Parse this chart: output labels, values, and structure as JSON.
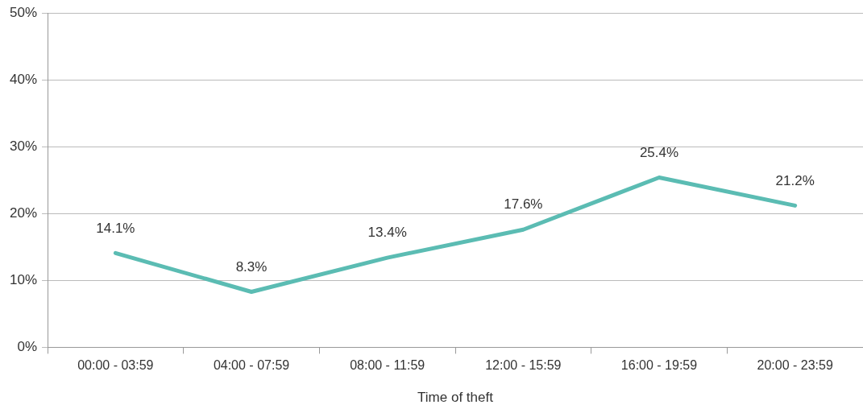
{
  "chart_data": {
    "type": "line",
    "xlabel": "Time of theft",
    "categories": [
      "00:00 - 03:59",
      "04:00 - 07:59",
      "08:00 - 11:59",
      "12:00 - 15:59",
      "16:00 - 19:59",
      "20:00 - 23:59"
    ],
    "series": [
      {
        "color": "#5bbcb3",
        "values": [
          14.1,
          8.3,
          13.4,
          17.6,
          25.4,
          21.2
        ],
        "value_labels": [
          "14.1%",
          "8.3%",
          "13.4%",
          "17.6%",
          "25.4%",
          "21.2%"
        ]
      }
    ],
    "ylim": [
      0,
      50
    ],
    "yticks": [
      {
        "value": 0,
        "label": "0%"
      },
      {
        "value": 10,
        "label": "10%"
      },
      {
        "value": 20,
        "label": "20%"
      },
      {
        "value": 30,
        "label": "30%"
      },
      {
        "value": 40,
        "label": "40%"
      },
      {
        "value": 50,
        "label": "50%"
      }
    ],
    "grid": "y",
    "legend": false,
    "marker": "none",
    "line_style": "solid"
  }
}
